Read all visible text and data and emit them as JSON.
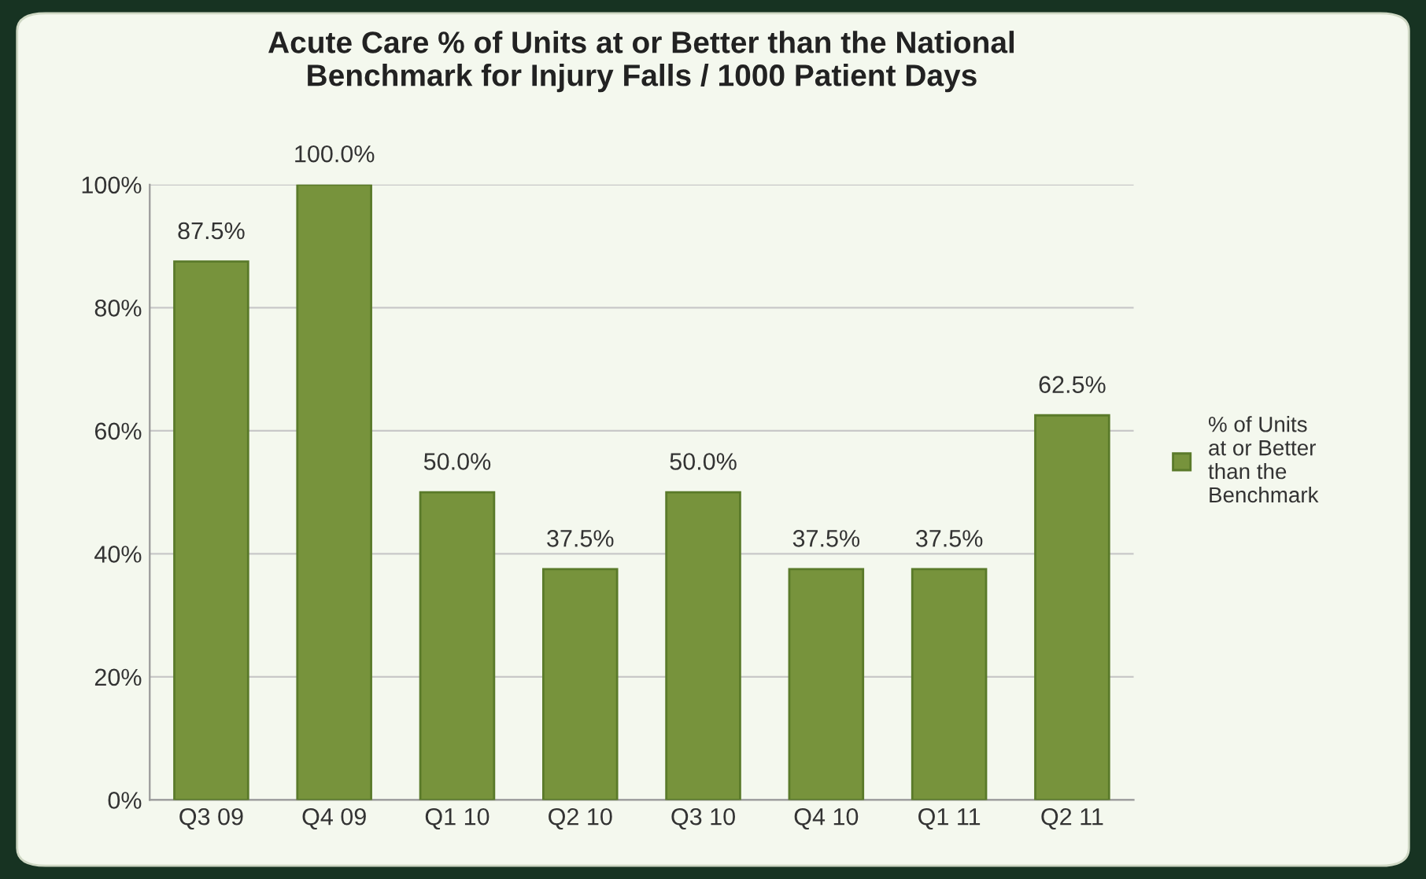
{
  "chart_data": {
    "type": "bar",
    "title": "Acute Care % of Units at or Better than the National\nBenchmark for Injury Falls / 1000 Patient Days",
    "categories": [
      "Q3 09",
      "Q4 09",
      "Q1 10",
      "Q2 10",
      "Q3 10",
      "Q4 10",
      "Q1 11",
      "Q2 11"
    ],
    "series": [
      {
        "name": "% of Units\nat or Better\nthan the\nBenchmark",
        "color": "#77933c",
        "values": [
          87.5,
          100,
          50,
          37.5,
          50,
          37.5,
          37.5,
          62.5
        ],
        "value_labels": [
          "87.5%",
          "100.0%",
          "50.0%",
          "37.5%",
          "50.0%",
          "37.5%",
          "37.5%",
          "62.5%"
        ]
      }
    ],
    "ylim": [
      0,
      100
    ],
    "yticks": [
      {
        "value": 0,
        "label": "0%"
      },
      {
        "value": 20,
        "label": "20%"
      },
      {
        "value": 40,
        "label": "40%"
      },
      {
        "value": 60,
        "label": "60%"
      },
      {
        "value": 80,
        "label": "80%"
      },
      {
        "value": 100,
        "label": "100%"
      }
    ],
    "grid": "y",
    "legend": "right"
  }
}
